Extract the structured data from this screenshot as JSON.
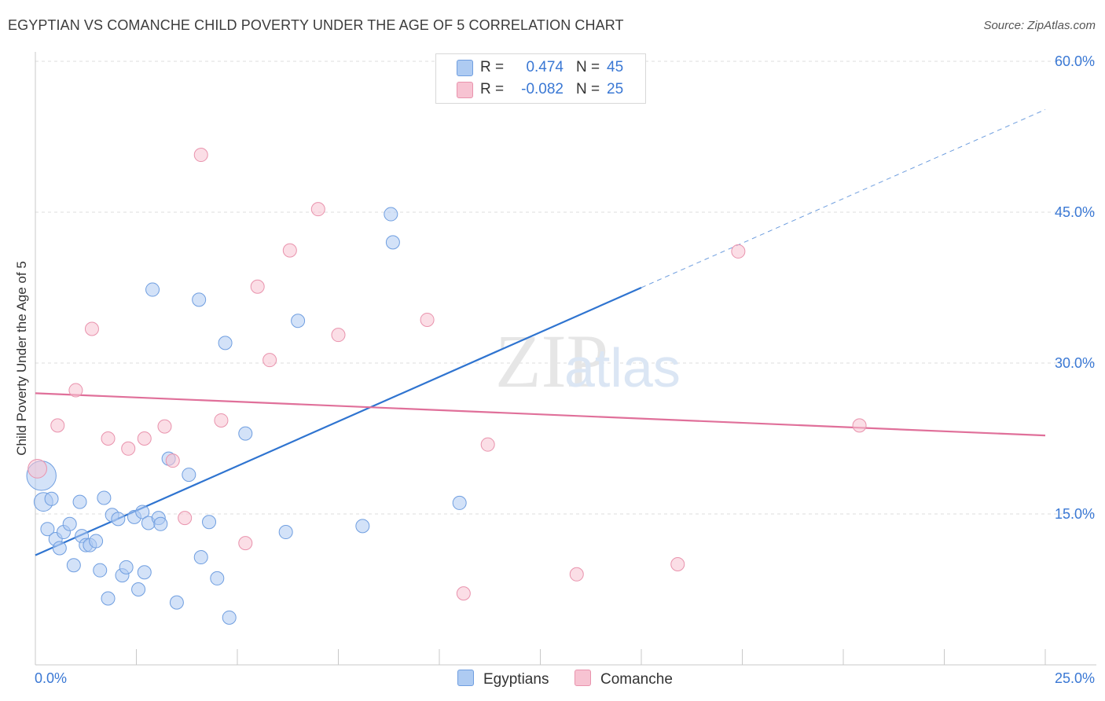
{
  "header": {
    "title": "EGYPTIAN VS COMANCHE CHILD POVERTY UNDER THE AGE OF 5 CORRELATION CHART",
    "source": "Source: ZipAtlas.com"
  },
  "watermark": {
    "zip": "ZIP",
    "atlas": "atlas"
  },
  "legend": {
    "rows": [
      {
        "r_label": "R =",
        "r_value": "0.474",
        "n_label": "N =",
        "n_value": "45"
      },
      {
        "r_label": "R =",
        "r_value": "-0.082",
        "n_label": "N =",
        "n_value": "25"
      }
    ]
  },
  "bottom_legend": {
    "series1": "Egyptians",
    "series2": "Comanche"
  },
  "colors": {
    "blue_fill": "#aecbf2",
    "blue_stroke": "#6f9ee0",
    "blue_line": "#2f74d0",
    "pink_fill": "#f7c3d2",
    "pink_stroke": "#e993ad",
    "pink_line": "#e0709a",
    "axis_text": "#3a78d4",
    "grid": "#dddddd"
  },
  "chart_data": {
    "type": "scatter",
    "title": "EGYPTIAN VS COMANCHE CHILD POVERTY UNDER THE AGE OF 5 CORRELATION CHART",
    "xlabel": "",
    "ylabel": "Child Poverty Under the Age of 5",
    "xlim": [
      0,
      25
    ],
    "ylim": [
      0,
      60
    ],
    "x_ticks": [
      0,
      25
    ],
    "x_tick_labels": [
      "0.0%",
      "25.0%"
    ],
    "y_ticks": [
      15,
      30,
      45,
      60
    ],
    "y_tick_labels": [
      "15.0%",
      "30.0%",
      "45.0%",
      "60.0%"
    ],
    "grid": true,
    "legend_position": "top-center",
    "series": [
      {
        "name": "Egyptians",
        "r": 0.474,
        "n": 45,
        "trend": {
          "x0": 0.0,
          "y0": 10.9,
          "x1": 15.0,
          "y1": 37.5,
          "dash_to_x": 25.0,
          "dash_to_y": 55.2
        },
        "points": [
          [
            0.15,
            18.8,
            2.2
          ],
          [
            0.2,
            16.2,
            1.4
          ],
          [
            0.4,
            16.5,
            1.0
          ],
          [
            0.3,
            13.5,
            1.0
          ],
          [
            0.5,
            12.5,
            1.0
          ],
          [
            0.6,
            11.6,
            1.0
          ],
          [
            0.7,
            13.2,
            1.0
          ],
          [
            0.85,
            14.0,
            1.0
          ],
          [
            0.95,
            9.9,
            1.0
          ],
          [
            1.1,
            16.2,
            1.0
          ],
          [
            1.15,
            12.8,
            1.0
          ],
          [
            1.25,
            11.9,
            1.0
          ],
          [
            1.35,
            11.9,
            1.0
          ],
          [
            1.5,
            12.3,
            1.0
          ],
          [
            1.6,
            9.4,
            1.0
          ],
          [
            1.7,
            16.6,
            1.0
          ],
          [
            1.8,
            6.6,
            1.0
          ],
          [
            1.9,
            14.9,
            1.0
          ],
          [
            2.05,
            14.5,
            1.0
          ],
          [
            2.15,
            8.9,
            1.0
          ],
          [
            2.25,
            9.7,
            1.0
          ],
          [
            2.45,
            14.7,
            1.0
          ],
          [
            2.55,
            7.5,
            1.0
          ],
          [
            2.65,
            15.2,
            1.0
          ],
          [
            2.7,
            9.2,
            1.0
          ],
          [
            2.8,
            14.1,
            1.0
          ],
          [
            2.9,
            37.3,
            1.0
          ],
          [
            3.05,
            14.6,
            1.0
          ],
          [
            3.1,
            14.0,
            1.0
          ],
          [
            3.3,
            20.5,
            1.0
          ],
          [
            3.5,
            6.2,
            1.0
          ],
          [
            3.8,
            18.9,
            1.0
          ],
          [
            4.05,
            36.3,
            1.0
          ],
          [
            4.1,
            10.7,
            1.0
          ],
          [
            4.3,
            14.2,
            1.0
          ],
          [
            4.5,
            8.6,
            1.0
          ],
          [
            4.7,
            32.0,
            1.0
          ],
          [
            4.8,
            4.7,
            1.0
          ],
          [
            5.2,
            23.0,
            1.0
          ],
          [
            6.2,
            13.2,
            1.0
          ],
          [
            6.5,
            34.2,
            1.0
          ],
          [
            8.1,
            13.8,
            1.0
          ],
          [
            8.8,
            44.8,
            1.0
          ],
          [
            8.85,
            42.0,
            1.0
          ],
          [
            10.5,
            16.1,
            1.0
          ]
        ]
      },
      {
        "name": "Comanche",
        "r": -0.082,
        "n": 25,
        "trend": {
          "x0": 0.0,
          "y0": 27.0,
          "x1": 25.0,
          "y1": 22.8
        },
        "points": [
          [
            0.05,
            19.5,
            1.4
          ],
          [
            0.55,
            23.8,
            1.0
          ],
          [
            1.0,
            27.3,
            1.0
          ],
          [
            1.4,
            33.4,
            1.0
          ],
          [
            1.8,
            22.5,
            1.0
          ],
          [
            2.3,
            21.5,
            1.0
          ],
          [
            2.7,
            22.5,
            1.0
          ],
          [
            3.2,
            23.7,
            1.0
          ],
          [
            3.4,
            20.3,
            1.0
          ],
          [
            3.7,
            14.6,
            1.0
          ],
          [
            4.1,
            50.7,
            1.0
          ],
          [
            4.6,
            24.3,
            1.0
          ],
          [
            5.2,
            12.1,
            1.0
          ],
          [
            5.5,
            37.6,
            1.0
          ],
          [
            5.8,
            30.3,
            1.0
          ],
          [
            6.3,
            41.2,
            1.0
          ],
          [
            7.0,
            45.3,
            1.0
          ],
          [
            7.5,
            32.8,
            1.0
          ],
          [
            9.7,
            34.3,
            1.0
          ],
          [
            10.6,
            7.1,
            1.0
          ],
          [
            11.2,
            21.9,
            1.0
          ],
          [
            13.4,
            9.0,
            1.0
          ],
          [
            15.9,
            10.0,
            1.0
          ],
          [
            17.4,
            41.1,
            1.0
          ],
          [
            20.4,
            23.8,
            1.0
          ]
        ]
      }
    ]
  }
}
